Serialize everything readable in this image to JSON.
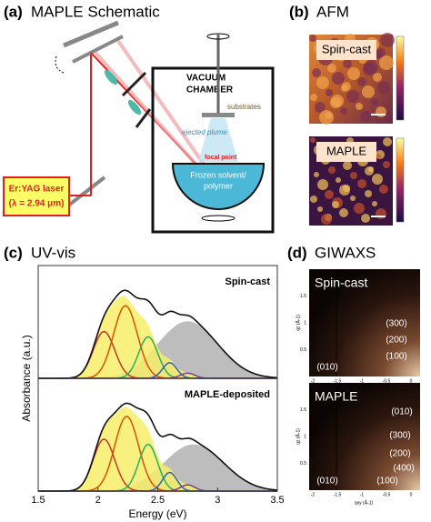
{
  "panels": {
    "a": {
      "label": "(a)",
      "title": "MAPLE Schematic",
      "laser": [
        "Er:YAG laser",
        "(λ = 2.94 μm)"
      ],
      "chamber": [
        "VACUUM",
        "CHAMBER"
      ],
      "substrates": "substrates",
      "plume": "ejected plume",
      "focal": "focal point",
      "target": [
        "Frozen solvent/",
        "polymer"
      ]
    },
    "b": {
      "label": "(b)",
      "title": "AFM",
      "images": [
        "Spin-cast",
        "MAPLE"
      ]
    },
    "c": {
      "label": "(c)",
      "title": "UV-vis",
      "chart_data": {
        "type": "line",
        "xlabel": "Energy (eV)",
        "ylabel": "Absorbance (a.u.)",
        "xlim": [
          1.5,
          3.5
        ],
        "xticks": [
          1.5,
          2,
          2.5,
          3,
          3.5
        ],
        "ylim": [
          0,
          1
        ],
        "spectra": [
          {
            "name": "Spin-cast",
            "components": [
              {
                "center": 2.05,
                "height": 0.45,
                "width": 0.09,
                "color": "#c0392b"
              },
              {
                "center": 2.23,
                "height": 0.7,
                "width": 0.1,
                "color": "#d35400"
              },
              {
                "center": 2.42,
                "height": 0.4,
                "width": 0.08,
                "color": "#27ae60"
              },
              {
                "center": 2.6,
                "height": 0.15,
                "width": 0.06,
                "color": "#2e5fbf"
              },
              {
                "center": 2.75,
                "height": 0.05,
                "width": 0.06,
                "color": "#7d3c98"
              }
            ],
            "scatter": {
              "center": 2.75,
              "height": 0.55,
              "width": 0.25,
              "color": "#bdbdbd"
            }
          },
          {
            "name": "MAPLE-deposited",
            "components": [
              {
                "center": 2.05,
                "height": 0.5,
                "width": 0.09,
                "color": "#c0392b"
              },
              {
                "center": 2.24,
                "height": 0.72,
                "width": 0.1,
                "color": "#d35400"
              },
              {
                "center": 2.42,
                "height": 0.45,
                "width": 0.08,
                "color": "#27ae60"
              },
              {
                "center": 2.6,
                "height": 0.18,
                "width": 0.06,
                "color": "#2e5fbf"
              },
              {
                "center": 2.75,
                "height": 0.06,
                "width": 0.06,
                "color": "#7d3c98"
              }
            ],
            "scatter": {
              "center": 2.8,
              "height": 0.45,
              "width": 0.25,
              "color": "#bdbdbd"
            }
          }
        ]
      }
    },
    "d": {
      "label": "(d)",
      "title": "GIWAXS",
      "xlabel": "qxy (Å-1)",
      "ylabel": "qz (Å-1)",
      "xticks": [
        -2,
        -1.5,
        -1,
        -0.5,
        0
      ],
      "yticks": [
        0.5,
        1,
        1.5
      ],
      "images": [
        {
          "name": "Spin-cast",
          "peaks": [
            "(010)",
            "(300)",
            "(200)",
            "(100)"
          ]
        },
        {
          "name": "MAPLE",
          "peaks": [
            "(010)",
            "(300)",
            "(200)",
            "(400)",
            "(100)",
            "(010)"
          ]
        }
      ]
    }
  }
}
